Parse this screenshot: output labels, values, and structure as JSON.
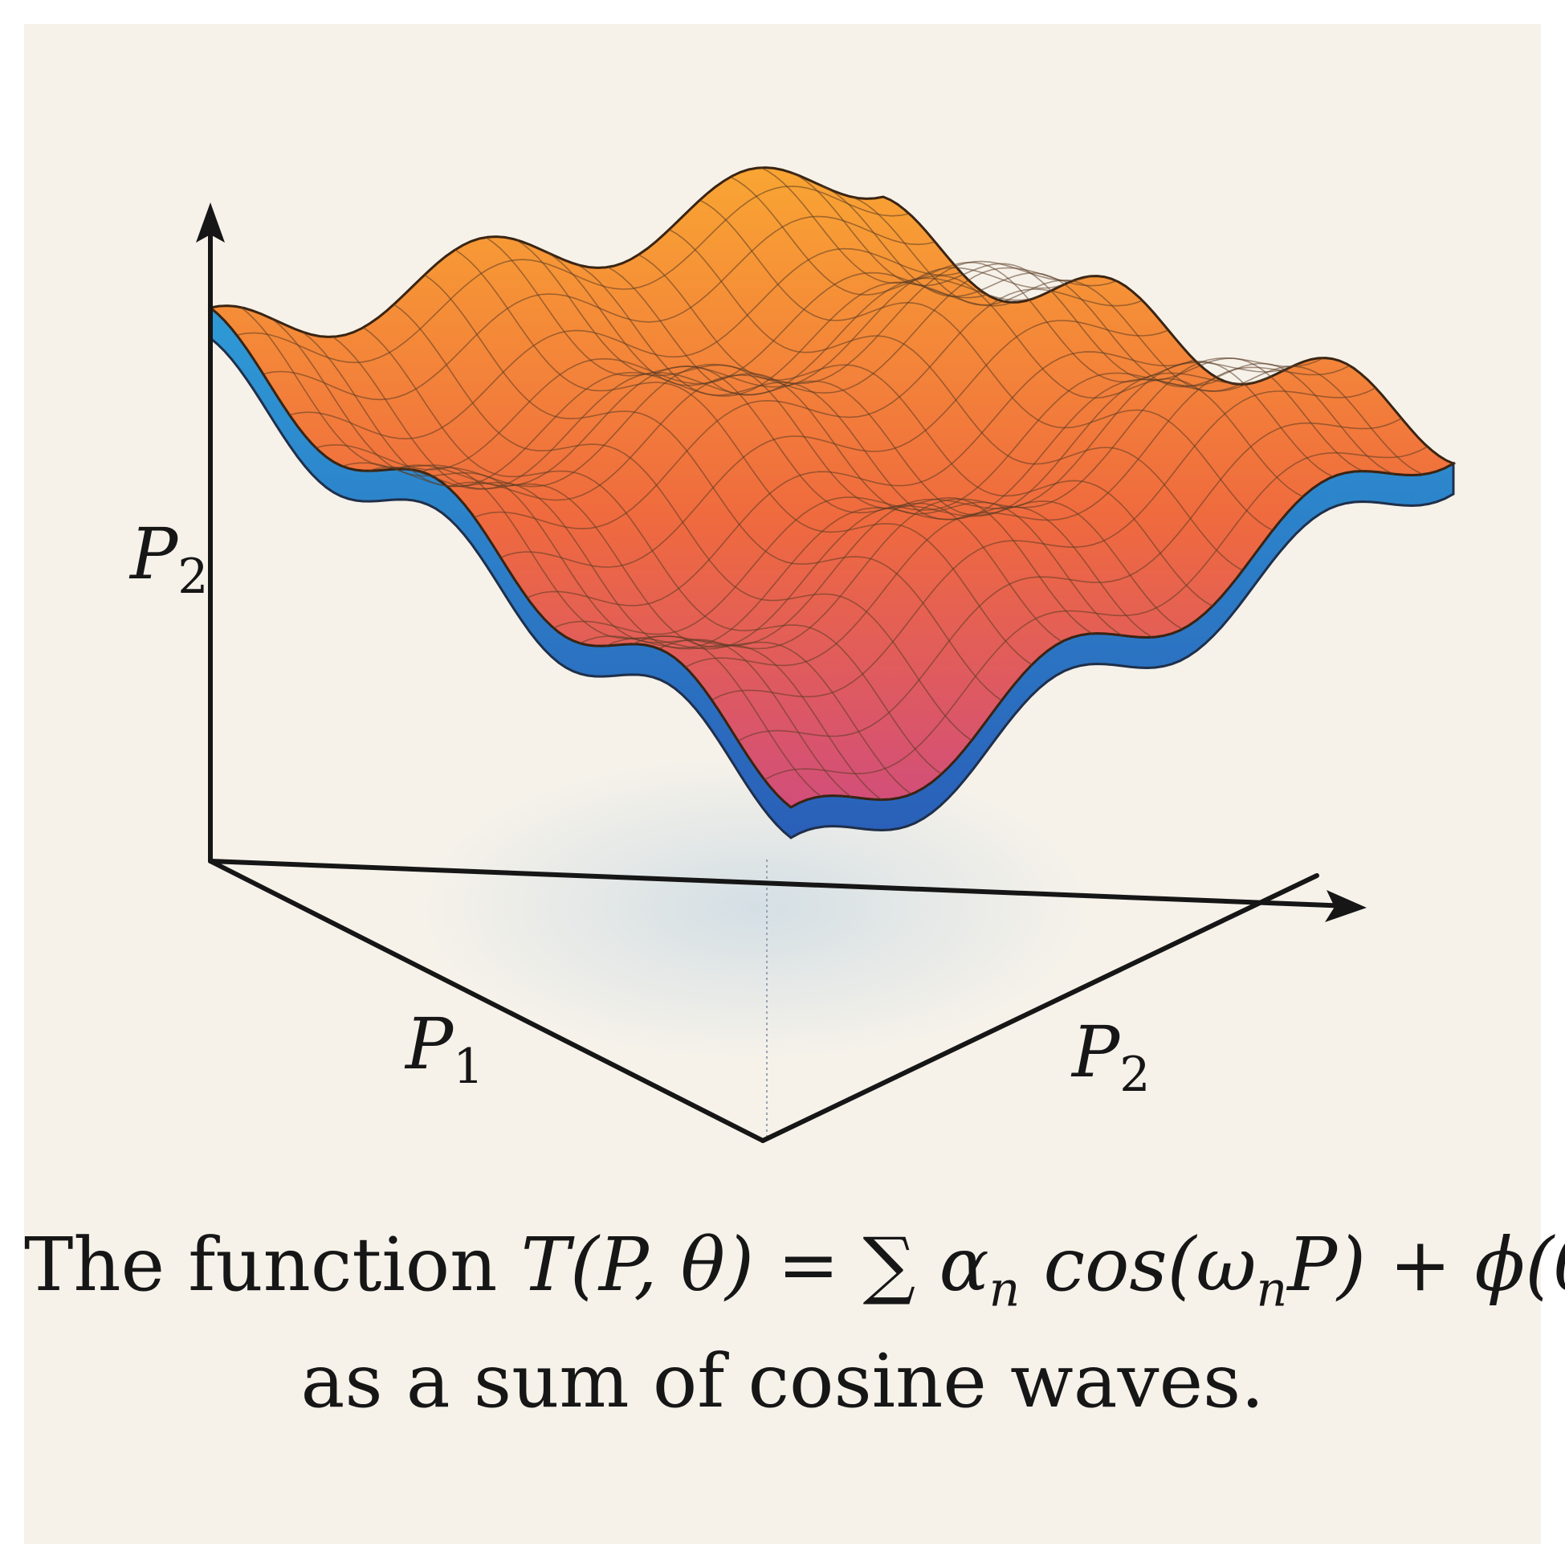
{
  "axes": {
    "vertical_label": "P",
    "vertical_sub": "2",
    "left_label": "P",
    "left_sub": "1",
    "right_label": "P",
    "right_sub": "2"
  },
  "caption": {
    "line1_text": "The function ",
    "line1_math": "T(P, θ) = ∑ α",
    "line1_math_sub": "n",
    "line1_math_rest": " cos(ω",
    "line1_math_sub2": "n",
    "line1_math_tail": "P) + ϕ(θ)",
    "line2": "as a sum of cosine waves."
  },
  "colors": {
    "background": "#f6f2ea",
    "surface_peak": "#f9a533",
    "surface_mid": "#ef6a3e",
    "surface_trough": "#d24e7a",
    "surface_underside": "#2e86c8",
    "grid_line": "#5a3a22",
    "axis": "#161616"
  }
}
